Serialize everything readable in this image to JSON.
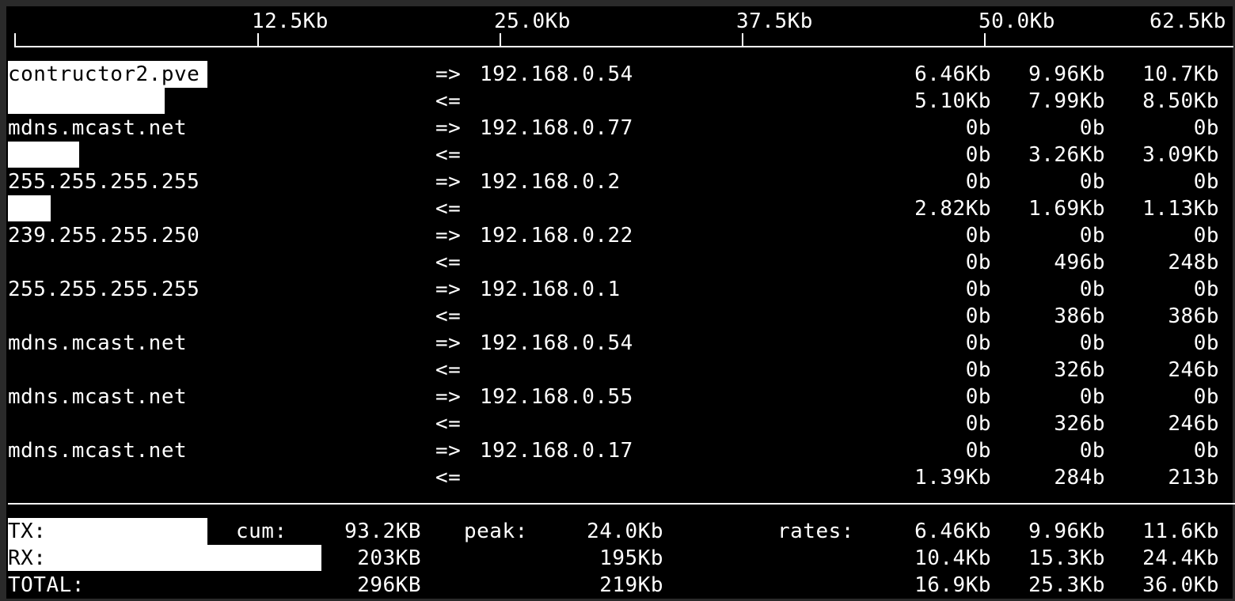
{
  "scale": {
    "labels": [
      "12.5Kb",
      "25.0Kb",
      "37.5Kb",
      "50.0Kb",
      "62.5Kb"
    ]
  },
  "connections": [
    {
      "host": "contructor2.pve",
      "dest": "192.168.0.54",
      "tx": [
        "6.46Kb",
        "9.96Kb",
        "10.7Kb"
      ],
      "rx": [
        "5.10Kb",
        "7.99Kb",
        "8.50Kb"
      ]
    },
    {
      "host": "mdns.mcast.net",
      "dest": "192.168.0.77",
      "tx": [
        "0b",
        "0b",
        "0b"
      ],
      "rx": [
        "0b",
        "3.26Kb",
        "3.09Kb"
      ]
    },
    {
      "host": "255.255.255.255",
      "dest": "192.168.0.2",
      "tx": [
        "0b",
        "0b",
        "0b"
      ],
      "rx": [
        "2.82Kb",
        "1.69Kb",
        "1.13Kb"
      ]
    },
    {
      "host": "239.255.255.250",
      "dest": "192.168.0.22",
      "tx": [
        "0b",
        "0b",
        "0b"
      ],
      "rx": [
        "0b",
        "496b",
        "248b"
      ]
    },
    {
      "host": "255.255.255.255",
      "dest": "192.168.0.1",
      "tx": [
        "0b",
        "0b",
        "0b"
      ],
      "rx": [
        "0b",
        "386b",
        "386b"
      ]
    },
    {
      "host": "mdns.mcast.net",
      "dest": "192.168.0.54",
      "tx": [
        "0b",
        "0b",
        "0b"
      ],
      "rx": [
        "0b",
        "326b",
        "246b"
      ]
    },
    {
      "host": "mdns.mcast.net",
      "dest": "192.168.0.55",
      "tx": [
        "0b",
        "0b",
        "0b"
      ],
      "rx": [
        "0b",
        "326b",
        "246b"
      ]
    },
    {
      "host": "mdns.mcast.net",
      "dest": "192.168.0.17",
      "tx": [
        "0b",
        "0b",
        "0b"
      ],
      "rx": [
        "1.39Kb",
        "284b",
        "213b"
      ]
    }
  ],
  "arrows": {
    "out": "=>",
    "in": "<="
  },
  "totals": {
    "labels": {
      "tx": "TX:",
      "rx": "RX:",
      "total": "TOTAL:",
      "cum": "cum:",
      "peak": "peak:",
      "rates": "rates:"
    },
    "tx": {
      "cum": "93.2KB",
      "peak": "24.0Kb",
      "rates": [
        "6.46Kb",
        "9.96Kb",
        "11.6Kb"
      ]
    },
    "rx": {
      "cum": "203KB",
      "peak": "195Kb",
      "rates": [
        "10.4Kb",
        "15.3Kb",
        "24.4Kb"
      ]
    },
    "total": {
      "cum": "296KB",
      "peak": "219Kb",
      "rates": [
        "16.9Kb",
        "25.3Kb",
        "36.0Kb"
      ]
    }
  },
  "colors": {
    "background": "#000000",
    "foreground": "#ffffff",
    "border": "#2a2a2a"
  }
}
